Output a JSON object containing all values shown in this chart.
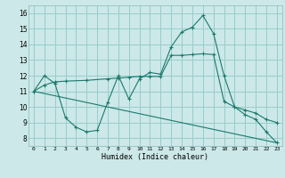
{
  "xlabel": "Humidex (Indice chaleur)",
  "bg_color": "#cce8e8",
  "grid_color": "#99cccc",
  "line_color": "#1a7a6e",
  "xlim": [
    -0.5,
    23.5
  ],
  "ylim": [
    7.5,
    16.5
  ],
  "xticks": [
    0,
    1,
    2,
    3,
    4,
    5,
    6,
    7,
    8,
    9,
    10,
    11,
    12,
    13,
    14,
    15,
    16,
    17,
    18,
    19,
    20,
    21,
    22,
    23
  ],
  "yticks": [
    8,
    9,
    10,
    11,
    12,
    13,
    14,
    15,
    16
  ],
  "curve1_x": [
    0,
    1,
    2,
    3,
    4,
    5,
    6,
    7,
    8,
    9,
    10,
    11,
    12,
    13,
    14,
    15,
    16,
    17,
    18,
    19,
    20,
    21,
    22,
    23
  ],
  "curve1_y": [
    11.0,
    12.0,
    11.5,
    9.3,
    8.7,
    8.4,
    8.5,
    10.3,
    12.0,
    10.5,
    11.8,
    12.2,
    12.1,
    13.85,
    14.8,
    15.1,
    15.85,
    14.7,
    12.0,
    10.0,
    9.5,
    9.2,
    8.4,
    7.7
  ],
  "curve2_x": [
    0,
    1,
    2,
    3,
    5,
    7,
    8,
    9,
    10,
    11,
    12,
    13,
    14,
    15,
    16,
    17,
    18,
    19,
    20,
    21,
    22,
    23
  ],
  "curve2_y": [
    11.0,
    11.4,
    11.6,
    11.65,
    11.7,
    11.8,
    11.85,
    11.9,
    11.95,
    11.95,
    11.95,
    13.3,
    13.3,
    13.35,
    13.4,
    13.35,
    10.35,
    10.0,
    9.8,
    9.6,
    9.2,
    9.0
  ],
  "curve3_x": [
    0,
    23
  ],
  "curve3_y": [
    11.0,
    7.7
  ]
}
